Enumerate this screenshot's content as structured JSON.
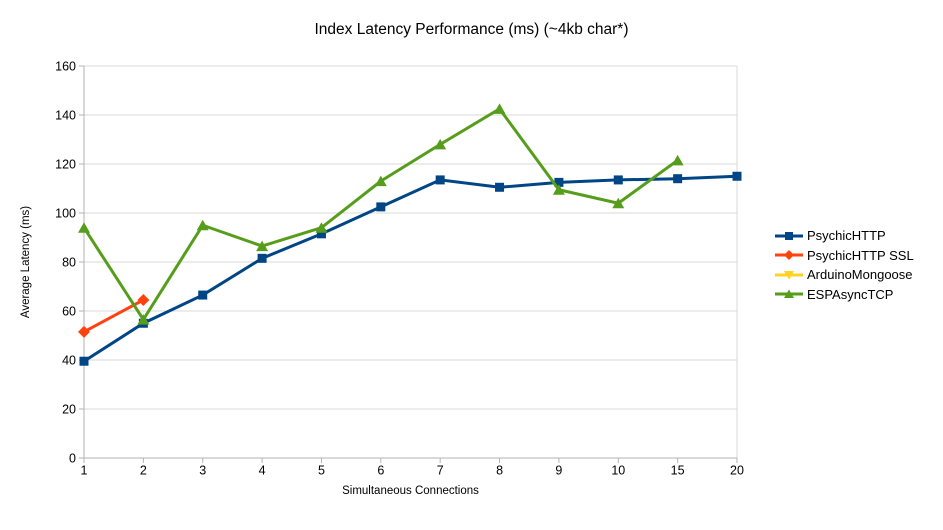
{
  "chart_data": {
    "type": "line",
    "title": "Index Latency Performance (ms) (~4kb char*)",
    "xlabel": "Simultaneous Connections",
    "ylabel": "Average Latency (ms)",
    "x_type": "categorical",
    "categories": [
      "1",
      "2",
      "3",
      "4",
      "5",
      "6",
      "7",
      "8",
      "9",
      "10",
      "15",
      "20"
    ],
    "ylim": [
      0,
      160
    ],
    "ytick_step": 20,
    "grid": "horizontal-only",
    "legend_position": "right-middle",
    "axis_color": "#b3b3b3",
    "gridline_color": "#d9d9d9",
    "text_color": "#000000",
    "series": [
      {
        "name": "PsychicHTTP",
        "color": "#004586",
        "marker": "square",
        "values": [
          39.5,
          55,
          66.5,
          81.5,
          91.5,
          102.5,
          113.5,
          110.5,
          112.5,
          113.5,
          114,
          115
        ]
      },
      {
        "name": "PsychicHTTP SSL",
        "color": "#FF420E",
        "marker": "diamond",
        "values": [
          51.5,
          64.5,
          null,
          null,
          null,
          null,
          null,
          null,
          null,
          null,
          null,
          null
        ]
      },
      {
        "name": "ArduinoMongoose",
        "color": "#FFD320",
        "marker": "triangle-down",
        "values": [
          null,
          null,
          null,
          null,
          null,
          null,
          null,
          null,
          null,
          null,
          null,
          null
        ]
      },
      {
        "name": "ESPAsyncTCP",
        "color": "#579D1C",
        "marker": "triangle-up",
        "values": [
          94,
          56.5,
          95,
          86.5,
          94,
          113,
          128,
          142.5,
          109.5,
          104,
          121.5,
          null
        ]
      }
    ]
  }
}
